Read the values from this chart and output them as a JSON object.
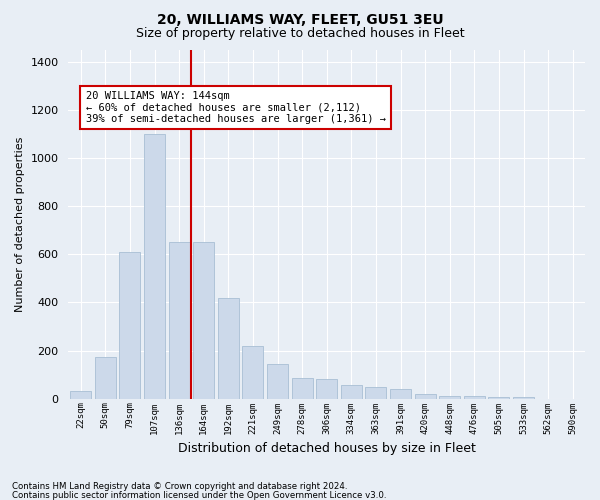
{
  "title": "20, WILLIAMS WAY, FLEET, GU51 3EU",
  "subtitle": "Size of property relative to detached houses in Fleet",
  "xlabel": "Distribution of detached houses by size in Fleet",
  "ylabel": "Number of detached properties",
  "footer_line1": "Contains HM Land Registry data © Crown copyright and database right 2024.",
  "footer_line2": "Contains public sector information licensed under the Open Government Licence v3.0.",
  "annotation_line1": "20 WILLIAMS WAY: 144sqm",
  "annotation_line2": "← 60% of detached houses are smaller (2,112)",
  "annotation_line3": "39% of semi-detached houses are larger (1,361) →",
  "bar_color": "#ccd9ea",
  "bar_edge_color": "#a8bfd4",
  "redline_color": "#cc0000",
  "categories": [
    "22sqm",
    "50sqm",
    "79sqm",
    "107sqm",
    "136sqm",
    "164sqm",
    "192sqm",
    "221sqm",
    "249sqm",
    "278sqm",
    "306sqm",
    "334sqm",
    "363sqm",
    "391sqm",
    "420sqm",
    "448sqm",
    "476sqm",
    "505sqm",
    "533sqm",
    "562sqm",
    "590sqm"
  ],
  "n_bins": 21,
  "bin_width": 28,
  "values": [
    30,
    175,
    610,
    1100,
    650,
    650,
    420,
    220,
    145,
    85,
    80,
    55,
    50,
    40,
    20,
    10,
    10,
    5,
    5,
    0,
    0
  ],
  "ylim": [
    0,
    1450
  ],
  "yticks": [
    0,
    200,
    400,
    600,
    800,
    1000,
    1200,
    1400
  ],
  "redline_x": 150,
  "background_color": "#e8eef5",
  "grid_color": "#ffffff",
  "title_fontsize": 10,
  "subtitle_fontsize": 9,
  "ylabel_fontsize": 8,
  "xlabel_fontsize": 9,
  "annotation_fontsize": 7.5,
  "annotation_box_color": "#ffffff",
  "annotation_box_edgecolor": "#cc0000"
}
